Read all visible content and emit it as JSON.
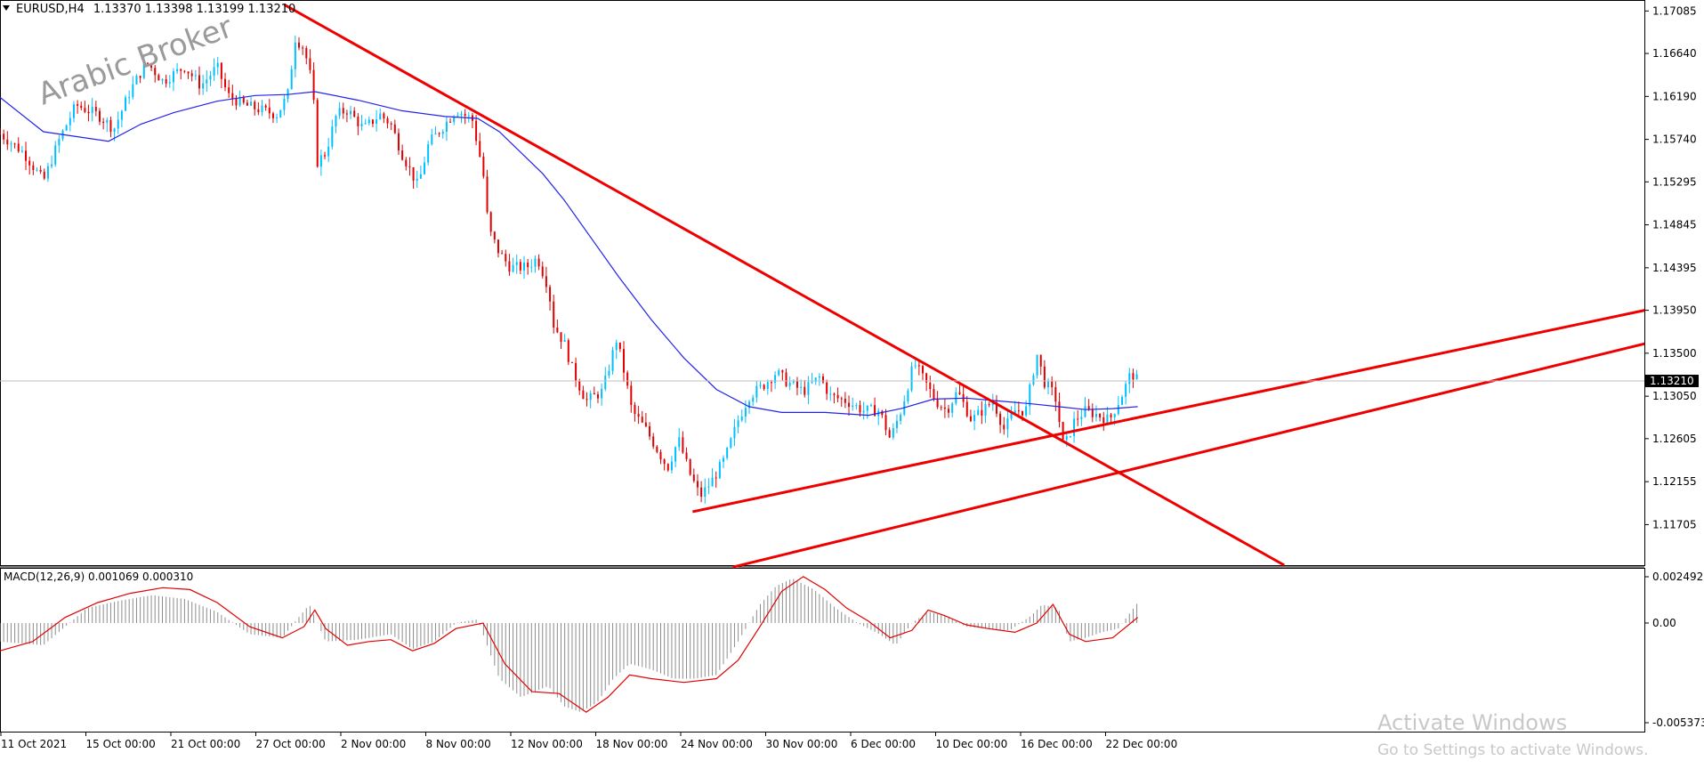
{
  "chart_data": {
    "type": "candlestick",
    "header": {
      "symbol_text": "EURUSD,H4",
      "ohlc_text": "1.13370 1.13398 1.13199 1.13210"
    },
    "price_axis": {
      "ticks": [
        "1.17085",
        "1.16640",
        "1.16190",
        "1.15740",
        "1.15295",
        "1.14845",
        "1.14395",
        "1.13950",
        "1.13500",
        "1.13050",
        "1.12605",
        "1.12155",
        "1.11705"
      ],
      "range": [
        1.1128,
        1.172
      ],
      "current_price": 1.1321,
      "current_price_label": "1.13210"
    },
    "time_axis": {
      "ticks": [
        "11 Oct 2021",
        "15 Oct 00:00",
        "21 Oct 00:00",
        "27 Oct 00:00",
        "2 Nov 00:00",
        "8 Nov 00:00",
        "12 Nov 00:00",
        "18 Nov 00:00",
        "24 Nov 00:00",
        "30 Nov 00:00",
        "6 Dec 00:00",
        "10 Dec 00:00",
        "16 Dec 00:00",
        "22 Dec 00:00"
      ]
    },
    "price_path": [
      [
        0,
        1.158
      ],
      [
        22,
        1.156
      ],
      [
        40,
        1.153
      ],
      [
        55,
        1.1575
      ],
      [
        70,
        1.161
      ],
      [
        90,
        1.16
      ],
      [
        105,
        1.1585
      ],
      [
        120,
        1.1625
      ],
      [
        135,
        1.1655
      ],
      [
        150,
        1.1635
      ],
      [
        170,
        1.165
      ],
      [
        185,
        1.163
      ],
      [
        200,
        1.165
      ],
      [
        210,
        1.162
      ],
      [
        225,
        1.161
      ],
      [
        240,
        1.1605
      ],
      [
        255,
        1.16
      ],
      [
        265,
        1.162
      ],
      [
        272,
        1.168
      ],
      [
        280,
        1.167
      ],
      [
        288,
        1.163
      ],
      [
        292,
        1.155
      ],
      [
        300,
        1.156
      ],
      [
        310,
        1.16
      ],
      [
        320,
        1.1605
      ],
      [
        335,
        1.1585
      ],
      [
        350,
        1.16
      ],
      [
        360,
        1.159
      ],
      [
        370,
        1.156
      ],
      [
        385,
        1.1525
      ],
      [
        395,
        1.157
      ],
      [
        410,
        1.159
      ],
      [
        420,
        1.1605
      ],
      [
        435,
        1.1595
      ],
      [
        445,
        1.154
      ],
      [
        450,
        1.148
      ],
      [
        460,
        1.1455
      ],
      [
        470,
        1.144
      ],
      [
        485,
        1.144
      ],
      [
        495,
        1.145
      ],
      [
        505,
        1.142
      ],
      [
        510,
        1.138
      ],
      [
        520,
        1.136
      ],
      [
        528,
        1.133
      ],
      [
        540,
        1.13
      ],
      [
        555,
        1.131
      ],
      [
        568,
        1.1365
      ],
      [
        575,
        1.133
      ],
      [
        582,
        1.129
      ],
      [
        595,
        1.127
      ],
      [
        605,
        1.125
      ],
      [
        615,
        1.123
      ],
      [
        625,
        1.126
      ],
      [
        635,
        1.1225
      ],
      [
        645,
        1.12
      ],
      [
        655,
        1.1215
      ],
      [
        668,
        1.124
      ],
      [
        680,
        1.128
      ],
      [
        690,
        1.1305
      ],
      [
        702,
        1.1315
      ],
      [
        715,
        1.133
      ],
      [
        725,
        1.132
      ],
      [
        740,
        1.131
      ],
      [
        755,
        1.1325
      ],
      [
        765,
        1.1305
      ],
      [
        780,
        1.13
      ],
      [
        795,
        1.129
      ],
      [
        810,
        1.129
      ],
      [
        820,
        1.126
      ],
      [
        830,
        1.129
      ],
      [
        842,
        1.134
      ],
      [
        852,
        1.132
      ],
      [
        862,
        1.13
      ],
      [
        872,
        1.129
      ],
      [
        882,
        1.131
      ],
      [
        895,
        1.128
      ],
      [
        905,
        1.129
      ],
      [
        915,
        1.13
      ],
      [
        925,
        1.127
      ],
      [
        935,
        1.129
      ],
      [
        945,
        1.129
      ],
      [
        955,
        1.135
      ],
      [
        962,
        1.132
      ],
      [
        972,
        1.1305
      ],
      [
        980,
        1.125
      ],
      [
        990,
        1.128
      ],
      [
        1000,
        1.129
      ],
      [
        1012,
        1.1285
      ],
      [
        1022,
        1.128
      ],
      [
        1035,
        1.131
      ],
      [
        1042,
        1.133
      ],
      [
        1048,
        1.1321
      ]
    ],
    "moving_average": [
      [
        0,
        1.1618
      ],
      [
        40,
        1.1582
      ],
      [
        70,
        1.1577
      ],
      [
        100,
        1.1572
      ],
      [
        130,
        1.159
      ],
      [
        160,
        1.1602
      ],
      [
        200,
        1.1614
      ],
      [
        235,
        1.162
      ],
      [
        265,
        1.1621
      ],
      [
        290,
        1.1624
      ],
      [
        330,
        1.1615
      ],
      [
        370,
        1.1604
      ],
      [
        410,
        1.1598
      ],
      [
        440,
        1.1596
      ],
      [
        460,
        1.1582
      ],
      [
        480,
        1.156
      ],
      [
        500,
        1.1538
      ],
      [
        520,
        1.151
      ],
      [
        545,
        1.147
      ],
      [
        570,
        1.143
      ],
      [
        600,
        1.1385
      ],
      [
        630,
        1.1345
      ],
      [
        660,
        1.1312
      ],
      [
        690,
        1.1294
      ],
      [
        720,
        1.1288
      ],
      [
        760,
        1.1288
      ],
      [
        800,
        1.1285
      ],
      [
        830,
        1.1292
      ],
      [
        860,
        1.1302
      ],
      [
        890,
        1.1303
      ],
      [
        920,
        1.13
      ],
      [
        950,
        1.1297
      ],
      [
        975,
        1.1294
      ],
      [
        1000,
        1.1291
      ],
      [
        1025,
        1.1292
      ],
      [
        1048,
        1.1294
      ]
    ],
    "trendlines": [
      {
        "from": [
          262,
          1.1715
        ],
        "to": [
          1183,
          1.1123
        ]
      },
      {
        "from": [
          638,
          1.1184
        ],
        "to": [
          1515,
          1.1395
        ]
      },
      {
        "from": [
          675,
          1.1126
        ],
        "to": [
          1515,
          1.136
        ]
      }
    ],
    "macd": {
      "label": "MACD(12,26,9) 0.001069 0.000310",
      "ticks": [
        "0.002492",
        "0.00",
        "-0.005373"
      ],
      "range": [
        -0.005373,
        0.002492
      ],
      "histogram": [
        [
          0,
          -0.001
        ],
        [
          40,
          -0.0012
        ],
        [
          60,
          -0.0002
        ],
        [
          80,
          0.0008
        ],
        [
          110,
          0.0012
        ],
        [
          140,
          0.0015
        ],
        [
          170,
          0.0013
        ],
        [
          200,
          0.0006
        ],
        [
          230,
          -0.0006
        ],
        [
          260,
          -0.0008
        ],
        [
          275,
          0.0003
        ],
        [
          285,
          0.001
        ],
        [
          300,
          -0.001
        ],
        [
          330,
          -0.0009
        ],
        [
          360,
          -0.0006
        ],
        [
          380,
          -0.0014
        ],
        [
          400,
          -0.001
        ],
        [
          420,
          0.0
        ],
        [
          440,
          0.0002
        ],
        [
          460,
          -0.003
        ],
        [
          480,
          -0.004
        ],
        [
          505,
          -0.0034
        ],
        [
          520,
          -0.0045
        ],
        [
          535,
          -0.0048
        ],
        [
          550,
          -0.0043
        ],
        [
          565,
          -0.003
        ],
        [
          580,
          -0.0022
        ],
        [
          600,
          -0.0025
        ],
        [
          620,
          -0.003
        ],
        [
          640,
          -0.003
        ],
        [
          660,
          -0.0028
        ],
        [
          680,
          -0.001
        ],
        [
          700,
          0.001
        ],
        [
          715,
          0.002
        ],
        [
          730,
          0.0024
        ],
        [
          750,
          0.0018
        ],
        [
          770,
          0.0008
        ],
        [
          790,
          0.0
        ],
        [
          810,
          -0.0006
        ],
        [
          825,
          -0.0012
        ],
        [
          840,
          0.0
        ],
        [
          855,
          0.0006
        ],
        [
          870,
          0.0004
        ],
        [
          890,
          -0.0002
        ],
        [
          910,
          -0.0003
        ],
        [
          930,
          -0.0004
        ],
        [
          950,
          0.0004
        ],
        [
          960,
          0.001
        ],
        [
          975,
          0.0008
        ],
        [
          985,
          -0.001
        ],
        [
          1000,
          -0.0008
        ],
        [
          1015,
          -0.0005
        ],
        [
          1030,
          -0.0003
        ],
        [
          1048,
          0.0011
        ]
      ],
      "signal": [
        [
          0,
          -0.0015
        ],
        [
          30,
          -0.001
        ],
        [
          60,
          0.0003
        ],
        [
          90,
          0.0011
        ],
        [
          120,
          0.0016
        ],
        [
          150,
          0.0019
        ],
        [
          175,
          0.0018
        ],
        [
          200,
          0.0011
        ],
        [
          230,
          -0.0002
        ],
        [
          260,
          -0.0008
        ],
        [
          280,
          -0.0002
        ],
        [
          290,
          0.0007
        ],
        [
          300,
          -0.0003
        ],
        [
          320,
          -0.0012
        ],
        [
          340,
          -0.001
        ],
        [
          360,
          -0.0009
        ],
        [
          380,
          -0.0015
        ],
        [
          400,
          -0.0011
        ],
        [
          420,
          -0.0003
        ],
        [
          445,
          0.0
        ],
        [
          465,
          -0.0022
        ],
        [
          490,
          -0.0037
        ],
        [
          515,
          -0.0038
        ],
        [
          540,
          -0.0048
        ],
        [
          560,
          -0.004
        ],
        [
          580,
          -0.0028
        ],
        [
          600,
          -0.003
        ],
        [
          630,
          -0.0032
        ],
        [
          660,
          -0.003
        ],
        [
          680,
          -0.002
        ],
        [
          700,
          -0.0002
        ],
        [
          720,
          0.0017
        ],
        [
          740,
          0.0025
        ],
        [
          760,
          0.0018
        ],
        [
          780,
          0.0008
        ],
        [
          800,
          0.0001
        ],
        [
          820,
          -0.0008
        ],
        [
          840,
          -0.0004
        ],
        [
          855,
          0.0007
        ],
        [
          870,
          0.0004
        ],
        [
          890,
          -0.0001
        ],
        [
          910,
          -0.0003
        ],
        [
          935,
          -0.0005
        ],
        [
          955,
          0.0
        ],
        [
          970,
          0.001
        ],
        [
          985,
          -0.0006
        ],
        [
          1000,
          -0.001
        ],
        [
          1025,
          -0.0008
        ],
        [
          1048,
          0.0003
        ]
      ]
    },
    "watermark_text": "Arabic Broker",
    "os_overlay": {
      "line1": "Activate Windows",
      "line2": "Go to Settings to activate Windows."
    },
    "colors": {
      "bull": "#00bfff",
      "bear": "#e00000",
      "ma": "#2222ee",
      "trendline": "#ee0000",
      "macd_hist": "#8c8c8c",
      "macd_signal": "#e00000"
    }
  }
}
